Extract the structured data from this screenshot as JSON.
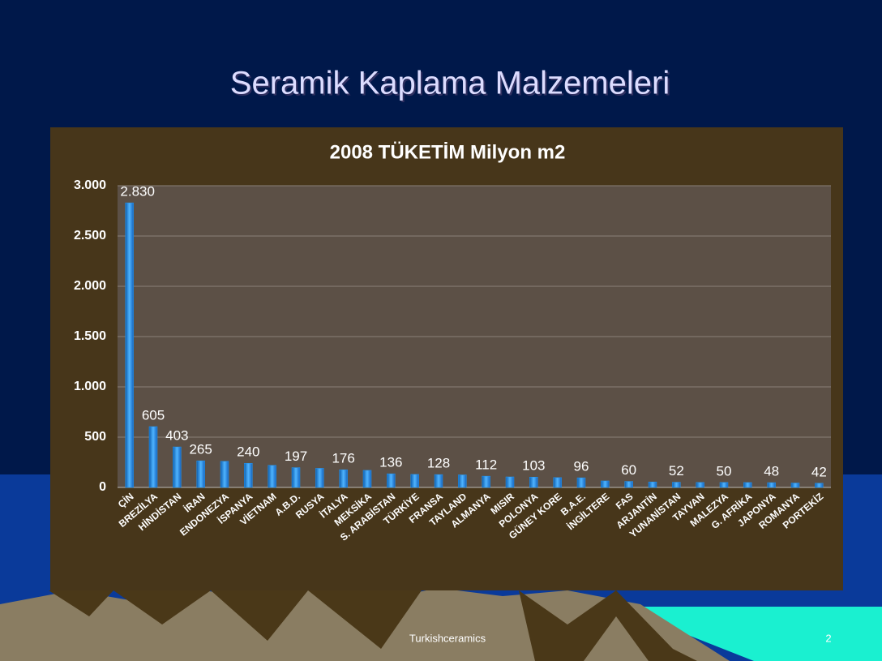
{
  "slide": {
    "title": "Seramik Kaplama Malzemeleri",
    "footer": "Turkishceramics",
    "page_number": "2"
  },
  "chart_data": {
    "type": "bar",
    "title": "2008 TÜKETİM Milyon m2",
    "categories": [
      "ÇİN",
      "BREZİLYA",
      "HİNDİSTAN",
      "İRAN",
      "ENDONEZYA",
      "İSPANYA",
      "VİETNAM",
      "A.B.D.",
      "RUSYA",
      "İTALYA",
      "MEKSİKA",
      "S. ARABİSTAN",
      "TÜRKİYE",
      "FRANSA",
      "TAYLAND",
      "ALMANYA",
      "MISIR",
      "POLONYA",
      "GÜNEY KORE",
      "B.A.E.",
      "İNGİLTERE",
      "FAS",
      "ARJANTİN",
      "YUNANİSTAN",
      "TAYVAN",
      "MALEZYA",
      "G. AFRİKA",
      "JAPONYA",
      "ROMANYA",
      "PORTEKİZ"
    ],
    "values": [
      2830,
      605,
      403,
      265,
      260,
      240,
      220,
      197,
      190,
      176,
      170,
      136,
      130,
      128,
      125,
      112,
      105,
      103,
      98,
      96,
      65,
      60,
      55,
      52,
      50,
      50,
      49,
      48,
      44,
      42
    ],
    "value_labels": [
      "2.830",
      "605",
      "403",
      "265",
      null,
      "240",
      null,
      "197",
      null,
      "176",
      null,
      "136",
      null,
      "128",
      null,
      "112",
      null,
      "103",
      null,
      "96",
      null,
      "60",
      null,
      "52",
      null,
      "50",
      null,
      "48",
      null,
      "42"
    ],
    "color": "#2196f3",
    "ylim": [
      0,
      3000
    ],
    "yticks": [
      0,
      500,
      {
        "value": 1000,
        "label": "1.000"
      },
      {
        "value": 1500,
        "label": "1.500"
      },
      {
        "value": 2000,
        "label": "2.000"
      },
      {
        "value": 2500,
        "label": "2.500"
      },
      {
        "value": 3000,
        "label": "3.000"
      }
    ],
    "grid": true
  }
}
